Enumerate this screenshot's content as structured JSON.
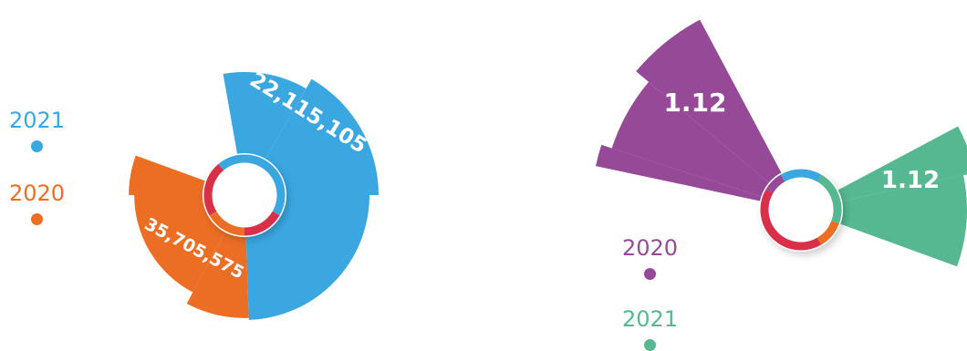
{
  "colors": {
    "blue": "#3aa7e1",
    "orange": "#ec6d24",
    "purple": "#964996",
    "green": "#55b890",
    "crimson": "#d83049"
  },
  "chart_data": [
    {
      "type": "pie",
      "title": "",
      "series": [
        {
          "name": "2021",
          "value": 22115105,
          "label": "22,115,105",
          "color": "#3aa7e1"
        },
        {
          "name": "2020",
          "value": 35705575,
          "label": "35,705,575",
          "color": "#ec6d24"
        }
      ],
      "legend": "left"
    },
    {
      "type": "pie",
      "title": "",
      "series": [
        {
          "name": "2020",
          "value": 1.12,
          "label": "1.12",
          "color": "#964996"
        },
        {
          "name": "2021",
          "value": 1.12,
          "label": "1.12",
          "color": "#55b890"
        }
      ],
      "legend": "bottom-left"
    }
  ]
}
